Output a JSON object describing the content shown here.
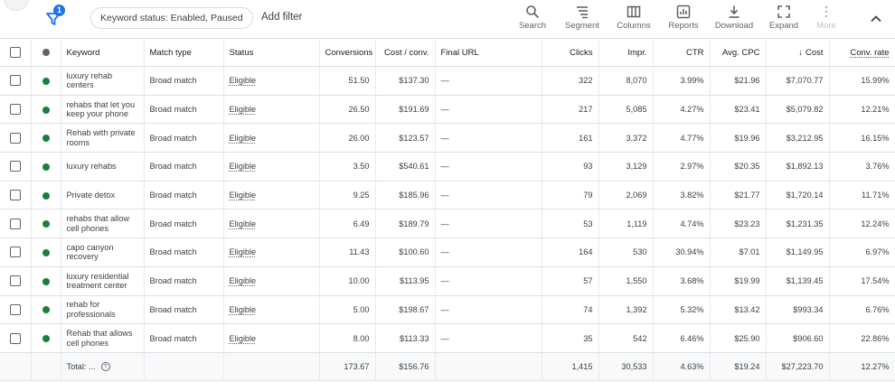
{
  "toolbar": {
    "filter_badge": "1",
    "chip_label": "Keyword status: Enabled, Paused",
    "add_filter": "Add filter",
    "tools": {
      "search": "Search",
      "segment": "Segment",
      "columns": "Columns",
      "reports": "Reports",
      "download": "Download",
      "expand": "Expand",
      "more": "More"
    }
  },
  "table": {
    "headers": {
      "keyword": "Keyword",
      "match_type": "Match type",
      "status": "Status",
      "conversions": "Conversions",
      "cost_conv": "Cost / conv.",
      "final_url": "Final URL",
      "clicks": "Clicks",
      "impr": "Impr.",
      "ctr": "CTR",
      "avg_cpc": "Avg. CPC",
      "cost": "Cost",
      "cost_arrow": "↓",
      "conv_rate": "Conv. rate"
    },
    "rows": [
      {
        "keyword": "luxury rehab centers",
        "match": "Broad match",
        "status": "Eligible",
        "conversions": "51.50",
        "cost_conv": "$137.30",
        "final_url": "—",
        "clicks": "322",
        "impr": "8,070",
        "ctr": "3.99%",
        "avg_cpc": "$21.96",
        "cost": "$7,070.77",
        "conv_rate": "15.99%"
      },
      {
        "keyword": "rehabs that let you keep your phone",
        "match": "Broad match",
        "status": "Eligible",
        "conversions": "26.50",
        "cost_conv": "$191.69",
        "final_url": "—",
        "clicks": "217",
        "impr": "5,085",
        "ctr": "4.27%",
        "avg_cpc": "$23.41",
        "cost": "$5,079.82",
        "conv_rate": "12.21%"
      },
      {
        "keyword": "Rehab with private rooms",
        "match": "Broad match",
        "status": "Eligible",
        "conversions": "26.00",
        "cost_conv": "$123.57",
        "final_url": "—",
        "clicks": "161",
        "impr": "3,372",
        "ctr": "4.77%",
        "avg_cpc": "$19.96",
        "cost": "$3,212.95",
        "conv_rate": "16.15%"
      },
      {
        "keyword": "luxury rehabs",
        "match": "Broad match",
        "status": "Eligible",
        "conversions": "3.50",
        "cost_conv": "$540.61",
        "final_url": "—",
        "clicks": "93",
        "impr": "3,129",
        "ctr": "2.97%",
        "avg_cpc": "$20.35",
        "cost": "$1,892.13",
        "conv_rate": "3.76%"
      },
      {
        "keyword": "Private detox",
        "match": "Broad match",
        "status": "Eligible",
        "conversions": "9.25",
        "cost_conv": "$185.96",
        "final_url": "—",
        "clicks": "79",
        "impr": "2,069",
        "ctr": "3.82%",
        "avg_cpc": "$21.77",
        "cost": "$1,720.14",
        "conv_rate": "11.71%"
      },
      {
        "keyword": "rehabs that allow cell phones",
        "match": "Broad match",
        "status": "Eligible",
        "conversions": "6.49",
        "cost_conv": "$189.79",
        "final_url": "—",
        "clicks": "53",
        "impr": "1,119",
        "ctr": "4.74%",
        "avg_cpc": "$23.23",
        "cost": "$1,231.35",
        "conv_rate": "12.24%"
      },
      {
        "keyword": "capo canyon recovery",
        "match": "Broad match",
        "status": "Eligible",
        "conversions": "11.43",
        "cost_conv": "$100.60",
        "final_url": "—",
        "clicks": "164",
        "impr": "530",
        "ctr": "30.94%",
        "avg_cpc": "$7.01",
        "cost": "$1,149.95",
        "conv_rate": "6.97%"
      },
      {
        "keyword": "luxury residential treatment center",
        "match": "Broad match",
        "status": "Eligible",
        "conversions": "10.00",
        "cost_conv": "$113.95",
        "final_url": "—",
        "clicks": "57",
        "impr": "1,550",
        "ctr": "3.68%",
        "avg_cpc": "$19.99",
        "cost": "$1,139.45",
        "conv_rate": "17.54%"
      },
      {
        "keyword": "rehab for professionals",
        "match": "Broad match",
        "status": "Eligible",
        "conversions": "5.00",
        "cost_conv": "$198.67",
        "final_url": "—",
        "clicks": "74",
        "impr": "1,392",
        "ctr": "5.32%",
        "avg_cpc": "$13.42",
        "cost": "$993.34",
        "conv_rate": "6.76%"
      },
      {
        "keyword": "Rehab that allows cell phones",
        "match": "Broad match",
        "status": "Eligible",
        "conversions": "8.00",
        "cost_conv": "$113.33",
        "final_url": "—",
        "clicks": "35",
        "impr": "542",
        "ctr": "6.46%",
        "avg_cpc": "$25.90",
        "cost": "$906.60",
        "conv_rate": "22.86%"
      }
    ],
    "total": {
      "label": "Total: ...",
      "help": "?",
      "conversions": "173.67",
      "cost_conv": "$156.76",
      "clicks": "1,415",
      "impr": "30,533",
      "ctr": "4.63%",
      "avg_cpc": "$19.24",
      "cost": "$27,223.70",
      "conv_rate": "12.27%"
    }
  },
  "colors": {
    "accent": "#1a73e8",
    "status_enabled": "#188038"
  }
}
